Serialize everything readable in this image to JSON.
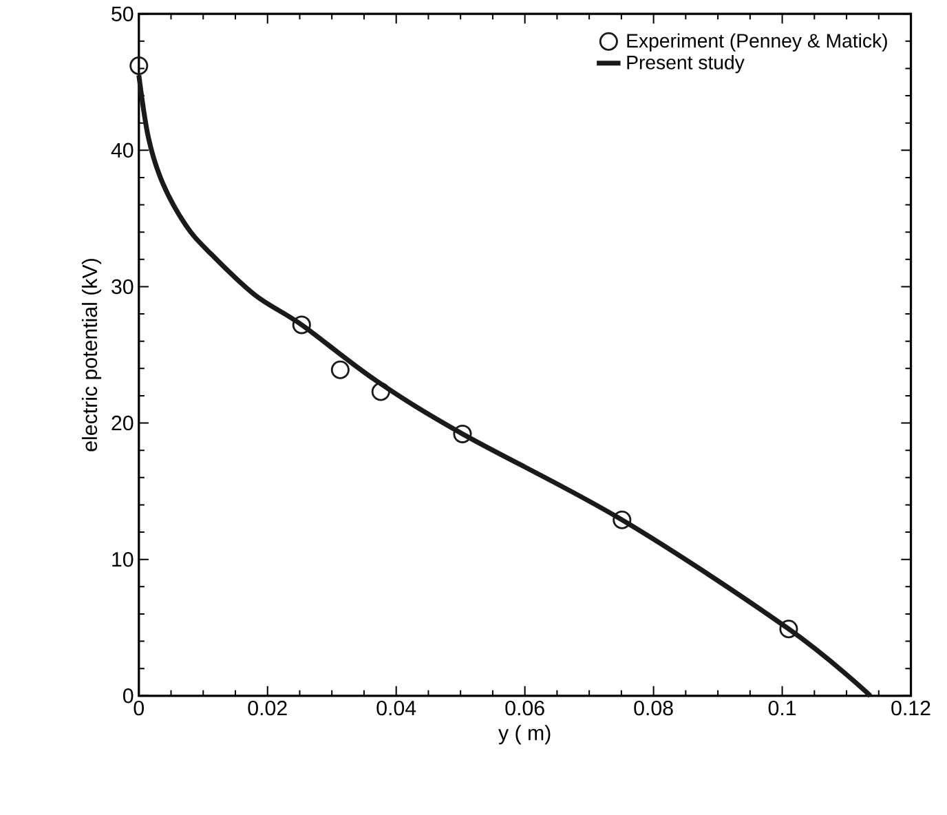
{
  "chart_data": {
    "type": "line",
    "xlabel": "y ( m)",
    "ylabel": "electric  potential  (kV)",
    "xlim": [
      0,
      0.12
    ],
    "ylim": [
      0,
      50
    ],
    "xticks": [
      0,
      0.02,
      0.04,
      0.06,
      0.08,
      0.1,
      0.12
    ],
    "yticks": [
      0,
      10,
      20,
      30,
      40,
      50
    ],
    "legend": "top right",
    "series": [
      {
        "name": "Experiment (Penney &  Matick)",
        "type": "scatter",
        "marker": "circle",
        "color": "#1a1a1a",
        "x": [
          0,
          0.0253,
          0.0313,
          0.0376,
          0.0503,
          0.0751,
          0.101
        ],
        "values": [
          46.2,
          27.2,
          23.9,
          22.3,
          19.2,
          12.9,
          4.9
        ]
      },
      {
        "name": "Present study",
        "marker": "none",
        "color": "#1a1a1a",
        "x": [
          0,
          0.0015,
          0.0037,
          0.0073,
          0.011,
          0.018,
          0.0253,
          0.0369,
          0.0503,
          0.0751,
          0.101,
          0.1137
        ],
        "values": [
          45.5,
          40.9,
          37.6,
          34.5,
          32.5,
          29.4,
          27.2,
          23.1,
          19.2,
          12.9,
          4.9,
          0
        ]
      }
    ]
  }
}
